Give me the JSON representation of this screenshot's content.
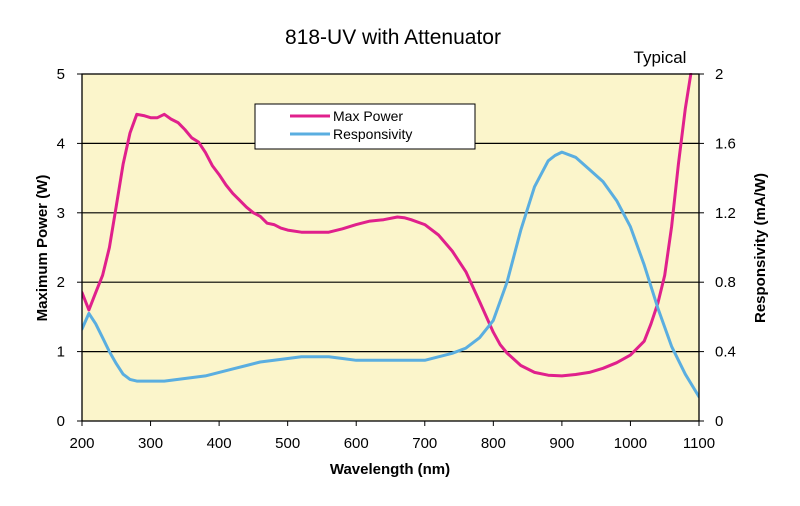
{
  "chart_data": {
    "type": "line",
    "title": "818-UV with Attenuator",
    "subtitle": "Typical",
    "xlabel": "Wavelength (nm)",
    "ylabel_left": "Maximum Power (W)",
    "ylabel_right": "Responsivity  (mA/W)",
    "xlim": [
      200,
      1100
    ],
    "ylim_left": [
      0,
      5
    ],
    "ylim_right": [
      0,
      2
    ],
    "x_ticks": [
      "200",
      "300",
      "400",
      "500",
      "600",
      "700",
      "800",
      "900",
      "1000",
      "1100"
    ],
    "y_left_ticks": [
      "0",
      "1",
      "2",
      "3",
      "4",
      "5"
    ],
    "y_right_ticks": [
      "0",
      "0.4",
      "0.8",
      "1.2",
      "1.6",
      "2"
    ],
    "grid": true,
    "legend_position": "top-center",
    "series": [
      {
        "name": "Max Power",
        "axis": "left",
        "color": "#e0208c",
        "x": [
          200,
          210,
          220,
          230,
          240,
          250,
          260,
          270,
          280,
          290,
          300,
          310,
          320,
          330,
          340,
          350,
          360,
          370,
          380,
          390,
          400,
          410,
          420,
          430,
          440,
          450,
          460,
          470,
          480,
          490,
          500,
          520,
          540,
          560,
          580,
          600,
          620,
          640,
          660,
          670,
          680,
          700,
          720,
          740,
          760,
          780,
          800,
          810,
          820,
          840,
          860,
          880,
          900,
          920,
          940,
          960,
          980,
          1000,
          1020,
          1030,
          1040,
          1050,
          1060,
          1070,
          1080,
          1088
        ],
        "y": [
          1.85,
          1.6,
          1.85,
          2.1,
          2.5,
          3.1,
          3.7,
          4.15,
          4.42,
          4.4,
          4.37,
          4.37,
          4.42,
          4.35,
          4.3,
          4.2,
          4.08,
          4.02,
          3.87,
          3.68,
          3.55,
          3.4,
          3.28,
          3.18,
          3.08,
          3.0,
          2.95,
          2.85,
          2.83,
          2.78,
          2.75,
          2.72,
          2.72,
          2.72,
          2.77,
          2.83,
          2.88,
          2.9,
          2.94,
          2.93,
          2.9,
          2.83,
          2.68,
          2.45,
          2.15,
          1.72,
          1.28,
          1.1,
          0.98,
          0.8,
          0.7,
          0.66,
          0.65,
          0.67,
          0.7,
          0.76,
          0.84,
          0.95,
          1.15,
          1.4,
          1.7,
          2.1,
          2.8,
          3.7,
          4.5,
          5.0
        ]
      },
      {
        "name": "Responsivity",
        "axis": "right",
        "color": "#5aaee0",
        "x": [
          200,
          210,
          220,
          230,
          240,
          250,
          260,
          270,
          280,
          300,
          320,
          340,
          360,
          380,
          400,
          420,
          440,
          460,
          480,
          500,
          520,
          540,
          560,
          580,
          600,
          620,
          640,
          660,
          680,
          700,
          720,
          740,
          760,
          780,
          800,
          820,
          840,
          860,
          880,
          890,
          900,
          920,
          940,
          960,
          980,
          1000,
          1020,
          1040,
          1060,
          1080,
          1100
        ],
        "y": [
          0.53,
          0.62,
          0.56,
          0.48,
          0.4,
          0.33,
          0.27,
          0.24,
          0.23,
          0.23,
          0.23,
          0.24,
          0.25,
          0.26,
          0.28,
          0.3,
          0.32,
          0.34,
          0.35,
          0.36,
          0.37,
          0.37,
          0.37,
          0.36,
          0.35,
          0.35,
          0.35,
          0.35,
          0.35,
          0.35,
          0.37,
          0.39,
          0.42,
          0.48,
          0.58,
          0.8,
          1.1,
          1.35,
          1.5,
          1.53,
          1.55,
          1.52,
          1.45,
          1.38,
          1.27,
          1.12,
          0.9,
          0.65,
          0.43,
          0.27,
          0.14
        ]
      }
    ]
  }
}
